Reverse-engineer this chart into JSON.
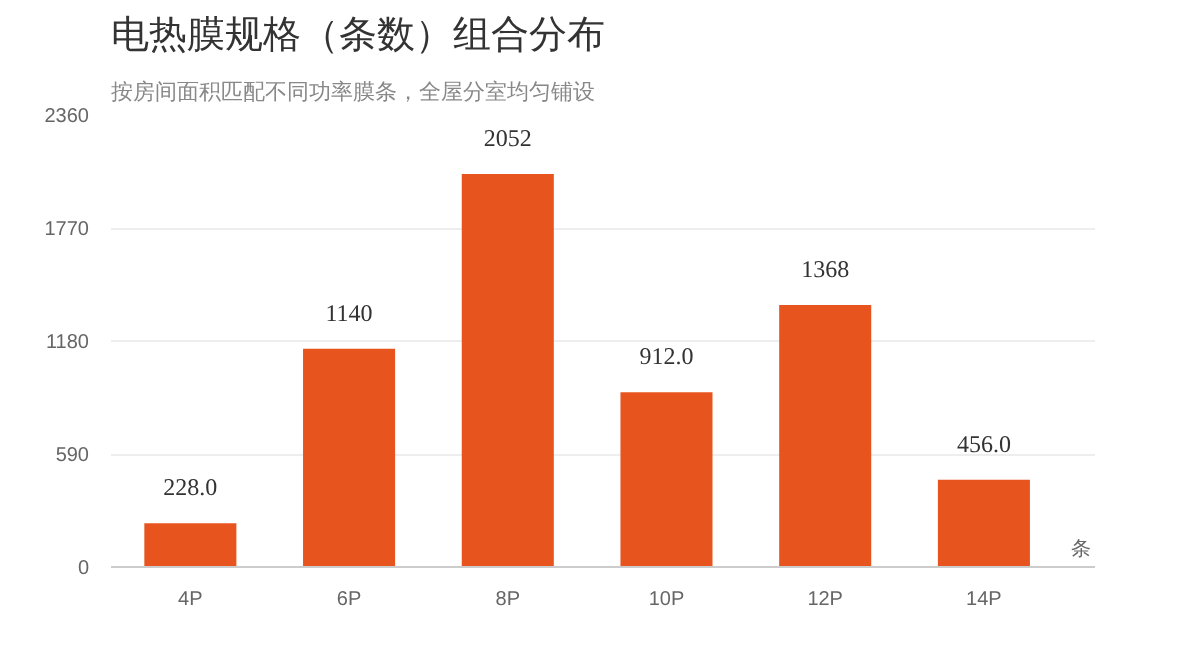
{
  "chart_data": {
    "type": "bar",
    "title": "电热膜规格（条数）组合分布",
    "subtitle": "按房间面积匹配不同功率膜条，全屋分室均匀铺设",
    "xlabel": "条",
    "categories": [
      "4P",
      "6P",
      "8P",
      "10P",
      "12P",
      "14P"
    ],
    "values": [
      228,
      1140,
      2052,
      912,
      1368,
      456
    ],
    "value_labels": [
      "228.0",
      "1140",
      "2052",
      "912.0",
      "1368",
      "456.0"
    ],
    "color": "#e8541e",
    "ylim": [
      0,
      2360
    ],
    "yticks": [
      0,
      590,
      1180,
      1770,
      2360
    ],
    "grid": "y"
  }
}
